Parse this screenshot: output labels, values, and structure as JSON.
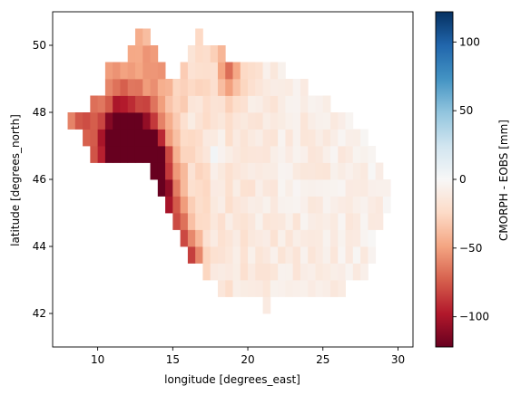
{
  "chart_data": {
    "type": "heatmap",
    "title": "",
    "xlabel": "longitude [degrees_east]",
    "ylabel": "latitude [degrees_north]",
    "colorbar_label": "CMORPH - EOBS [mm]",
    "colormap": "RdBu",
    "colormap_stops": [
      "#67001f",
      "#b2182b",
      "#d6604d",
      "#f4a582",
      "#fddbc7",
      "#f7f7f7",
      "#d1e5f0",
      "#92c5de",
      "#4393c3",
      "#2166ac",
      "#053061"
    ],
    "xlim": [
      7,
      31
    ],
    "ylim": [
      41,
      51
    ],
    "clim": [
      -122,
      122
    ],
    "x_ticks": [
      10,
      15,
      20,
      25,
      30
    ],
    "y_ticks": [
      42,
      44,
      46,
      48,
      50
    ],
    "colorbar_ticks": [
      -100,
      -50,
      0,
      50,
      100
    ],
    "grid": false,
    "cell_size_deg": 0.5,
    "domain_outline_lon_lat": [
      [
        8.0,
        47.9
      ],
      [
        9.5,
        48.2
      ],
      [
        10.5,
        48.6
      ],
      [
        10.6,
        49.3
      ],
      [
        11.3,
        49.6
      ],
      [
        12.0,
        49.3
      ],
      [
        12.3,
        50.2
      ],
      [
        13.2,
        50.3
      ],
      [
        14.0,
        49.7
      ],
      [
        14.8,
        49.1
      ],
      [
        15.5,
        49.2
      ],
      [
        16.0,
        49.9
      ],
      [
        16.8,
        50.3
      ],
      [
        17.6,
        50.1
      ],
      [
        18.6,
        49.7
      ],
      [
        19.3,
        49.6
      ],
      [
        20.0,
        49.5
      ],
      [
        21.3,
        49.5
      ],
      [
        22.3,
        49.4
      ],
      [
        23.3,
        49.0
      ],
      [
        24.2,
        48.6
      ],
      [
        25.3,
        48.3
      ],
      [
        26.2,
        48.2
      ],
      [
        27.0,
        48.0
      ],
      [
        27.6,
        47.4
      ],
      [
        28.2,
        47.0
      ],
      [
        28.7,
        46.4
      ],
      [
        29.5,
        45.7
      ],
      [
        29.6,
        45.2
      ],
      [
        28.8,
        44.8
      ],
      [
        28.4,
        44.1
      ],
      [
        28.2,
        43.5
      ],
      [
        27.6,
        43.1
      ],
      [
        27.0,
        43.0
      ],
      [
        26.2,
        42.7
      ],
      [
        25.1,
        42.5
      ],
      [
        24.0,
        42.6
      ],
      [
        23.0,
        42.5
      ],
      [
        22.0,
        42.5
      ],
      [
        21.3,
        42.2
      ],
      [
        20.4,
        42.3
      ],
      [
        19.5,
        42.6
      ],
      [
        18.8,
        42.4
      ],
      [
        18.2,
        42.6
      ],
      [
        17.4,
        43.0
      ],
      [
        16.7,
        43.4
      ],
      [
        16.1,
        43.8
      ],
      [
        15.6,
        44.3
      ],
      [
        15.2,
        44.8
      ],
      [
        14.8,
        45.2
      ],
      [
        14.3,
        45.5
      ],
      [
        14.0,
        45.9
      ],
      [
        13.6,
        46.2
      ],
      [
        13.0,
        46.3
      ],
      [
        12.2,
        46.4
      ],
      [
        11.4,
        46.6
      ],
      [
        10.6,
        46.6
      ],
      [
        10.3,
        46.3
      ],
      [
        9.8,
        46.5
      ],
      [
        9.7,
        47.0
      ],
      [
        9.0,
        47.3
      ],
      [
        8.4,
        47.5
      ]
    ],
    "anomaly_spots": [
      {
        "lon": 12.6,
        "lat": 46.8,
        "radius_deg": 1.6,
        "value": -115
      },
      {
        "lon": 13.6,
        "lat": 46.4,
        "radius_deg": 1.0,
        "value": -110
      },
      {
        "lon": 11.2,
        "lat": 47.1,
        "radius_deg": 1.2,
        "value": -80
      },
      {
        "lon": 14.6,
        "lat": 45.3,
        "radius_deg": 1.0,
        "value": -65
      },
      {
        "lon": 15.6,
        "lat": 43.9,
        "radius_deg": 1.0,
        "value": -55
      },
      {
        "lon": 16.3,
        "lat": 43.3,
        "radius_deg": 0.8,
        "value": -45
      },
      {
        "lon": 18.8,
        "lat": 49.3,
        "radius_deg": 0.8,
        "value": -55
      },
      {
        "lon": 17.8,
        "lat": 46.9,
        "radius_deg": 0.45,
        "value": 25
      },
      {
        "lon": 16.4,
        "lat": 47.8,
        "radius_deg": 0.3,
        "value": 15
      },
      {
        "lon": 22.0,
        "lat": 46.5,
        "radius_deg": 2.5,
        "value": 3
      },
      {
        "lon": 26.0,
        "lat": 46.7,
        "radius_deg": 1.5,
        "value": 0
      },
      {
        "lon": 9.0,
        "lat": 47.9,
        "radius_deg": 1.0,
        "value": -25
      },
      {
        "lon": 14.0,
        "lat": 49.6,
        "radius_deg": 0.8,
        "value": -30
      }
    ]
  }
}
